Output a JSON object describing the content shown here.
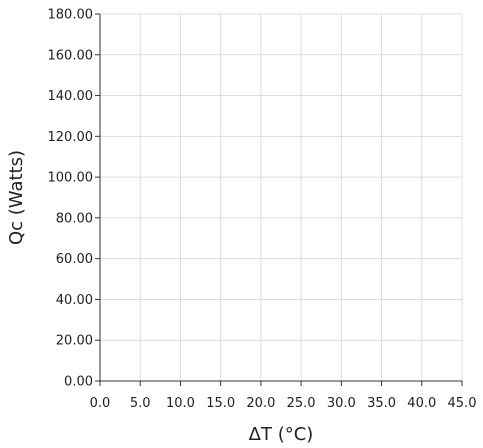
{
  "chart_data": {
    "type": "line",
    "title": "",
    "xlabel": "ΔT (°C)",
    "ylabel": "Qc (Watts)",
    "xlim": [
      0,
      45
    ],
    "ylim": [
      0,
      180
    ],
    "x_ticks": [
      "0.0",
      "5.0",
      "10.0",
      "15.0",
      "20.0",
      "25.0",
      "30.0",
      "35.0",
      "40.0",
      "45.0"
    ],
    "y_ticks": [
      "0.00",
      "20.00",
      "40.00",
      "60.00",
      "80.00",
      "100.00",
      "120.00",
      "140.00",
      "160.00",
      "180.00"
    ],
    "grid": true,
    "series": []
  },
  "colors": {
    "grid": "#dcdcdc",
    "axis": "#333333",
    "text": "#222222",
    "background": "#ffffff"
  }
}
